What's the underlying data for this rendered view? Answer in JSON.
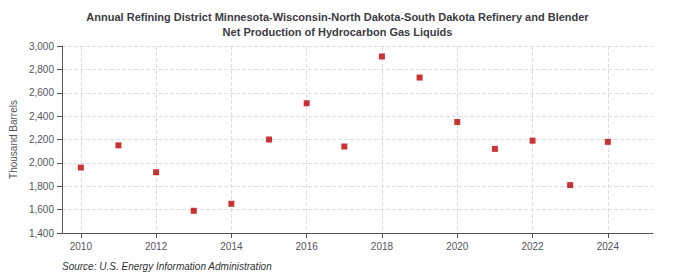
{
  "chart_data": {
    "type": "scatter",
    "title": "Annual Refining District Minnesota-Wisconsin-North Dakota-South Dakota Refinery and Blender\nNet Production of Hydrocarbon Gas Liquids",
    "ylabel": "Thousand Barrels",
    "source": "Source: U.S. Energy Information Administration",
    "x": [
      2010,
      2011,
      2012,
      2013,
      2014,
      2015,
      2016,
      2017,
      2018,
      2019,
      2020,
      2021,
      2022,
      2023,
      2024
    ],
    "values": [
      1960,
      2150,
      1920,
      1590,
      1650,
      2200,
      2510,
      2140,
      2910,
      2730,
      2350,
      2120,
      2190,
      1810,
      2180
    ],
    "color": "#bb0000",
    "marker": "square",
    "grid": true,
    "xlim": [
      2009.5,
      2025.2
    ],
    "xticks": [
      2010,
      2012,
      2014,
      2016,
      2018,
      2020,
      2022,
      2024
    ],
    "ylim": [
      1400,
      3000
    ],
    "yticks": [
      {
        "value": 1400,
        "label": "1,400"
      },
      {
        "value": 1600,
        "label": "1,600"
      },
      {
        "value": 1800,
        "label": "1,800"
      },
      {
        "value": 2000,
        "label": "2,000"
      },
      {
        "value": 2200,
        "label": "2,200"
      },
      {
        "value": 2400,
        "label": "2,400"
      },
      {
        "value": 2600,
        "label": "2,600"
      },
      {
        "value": 2800,
        "label": "2,800"
      },
      {
        "value": 3000,
        "label": "3,000"
      }
    ]
  }
}
